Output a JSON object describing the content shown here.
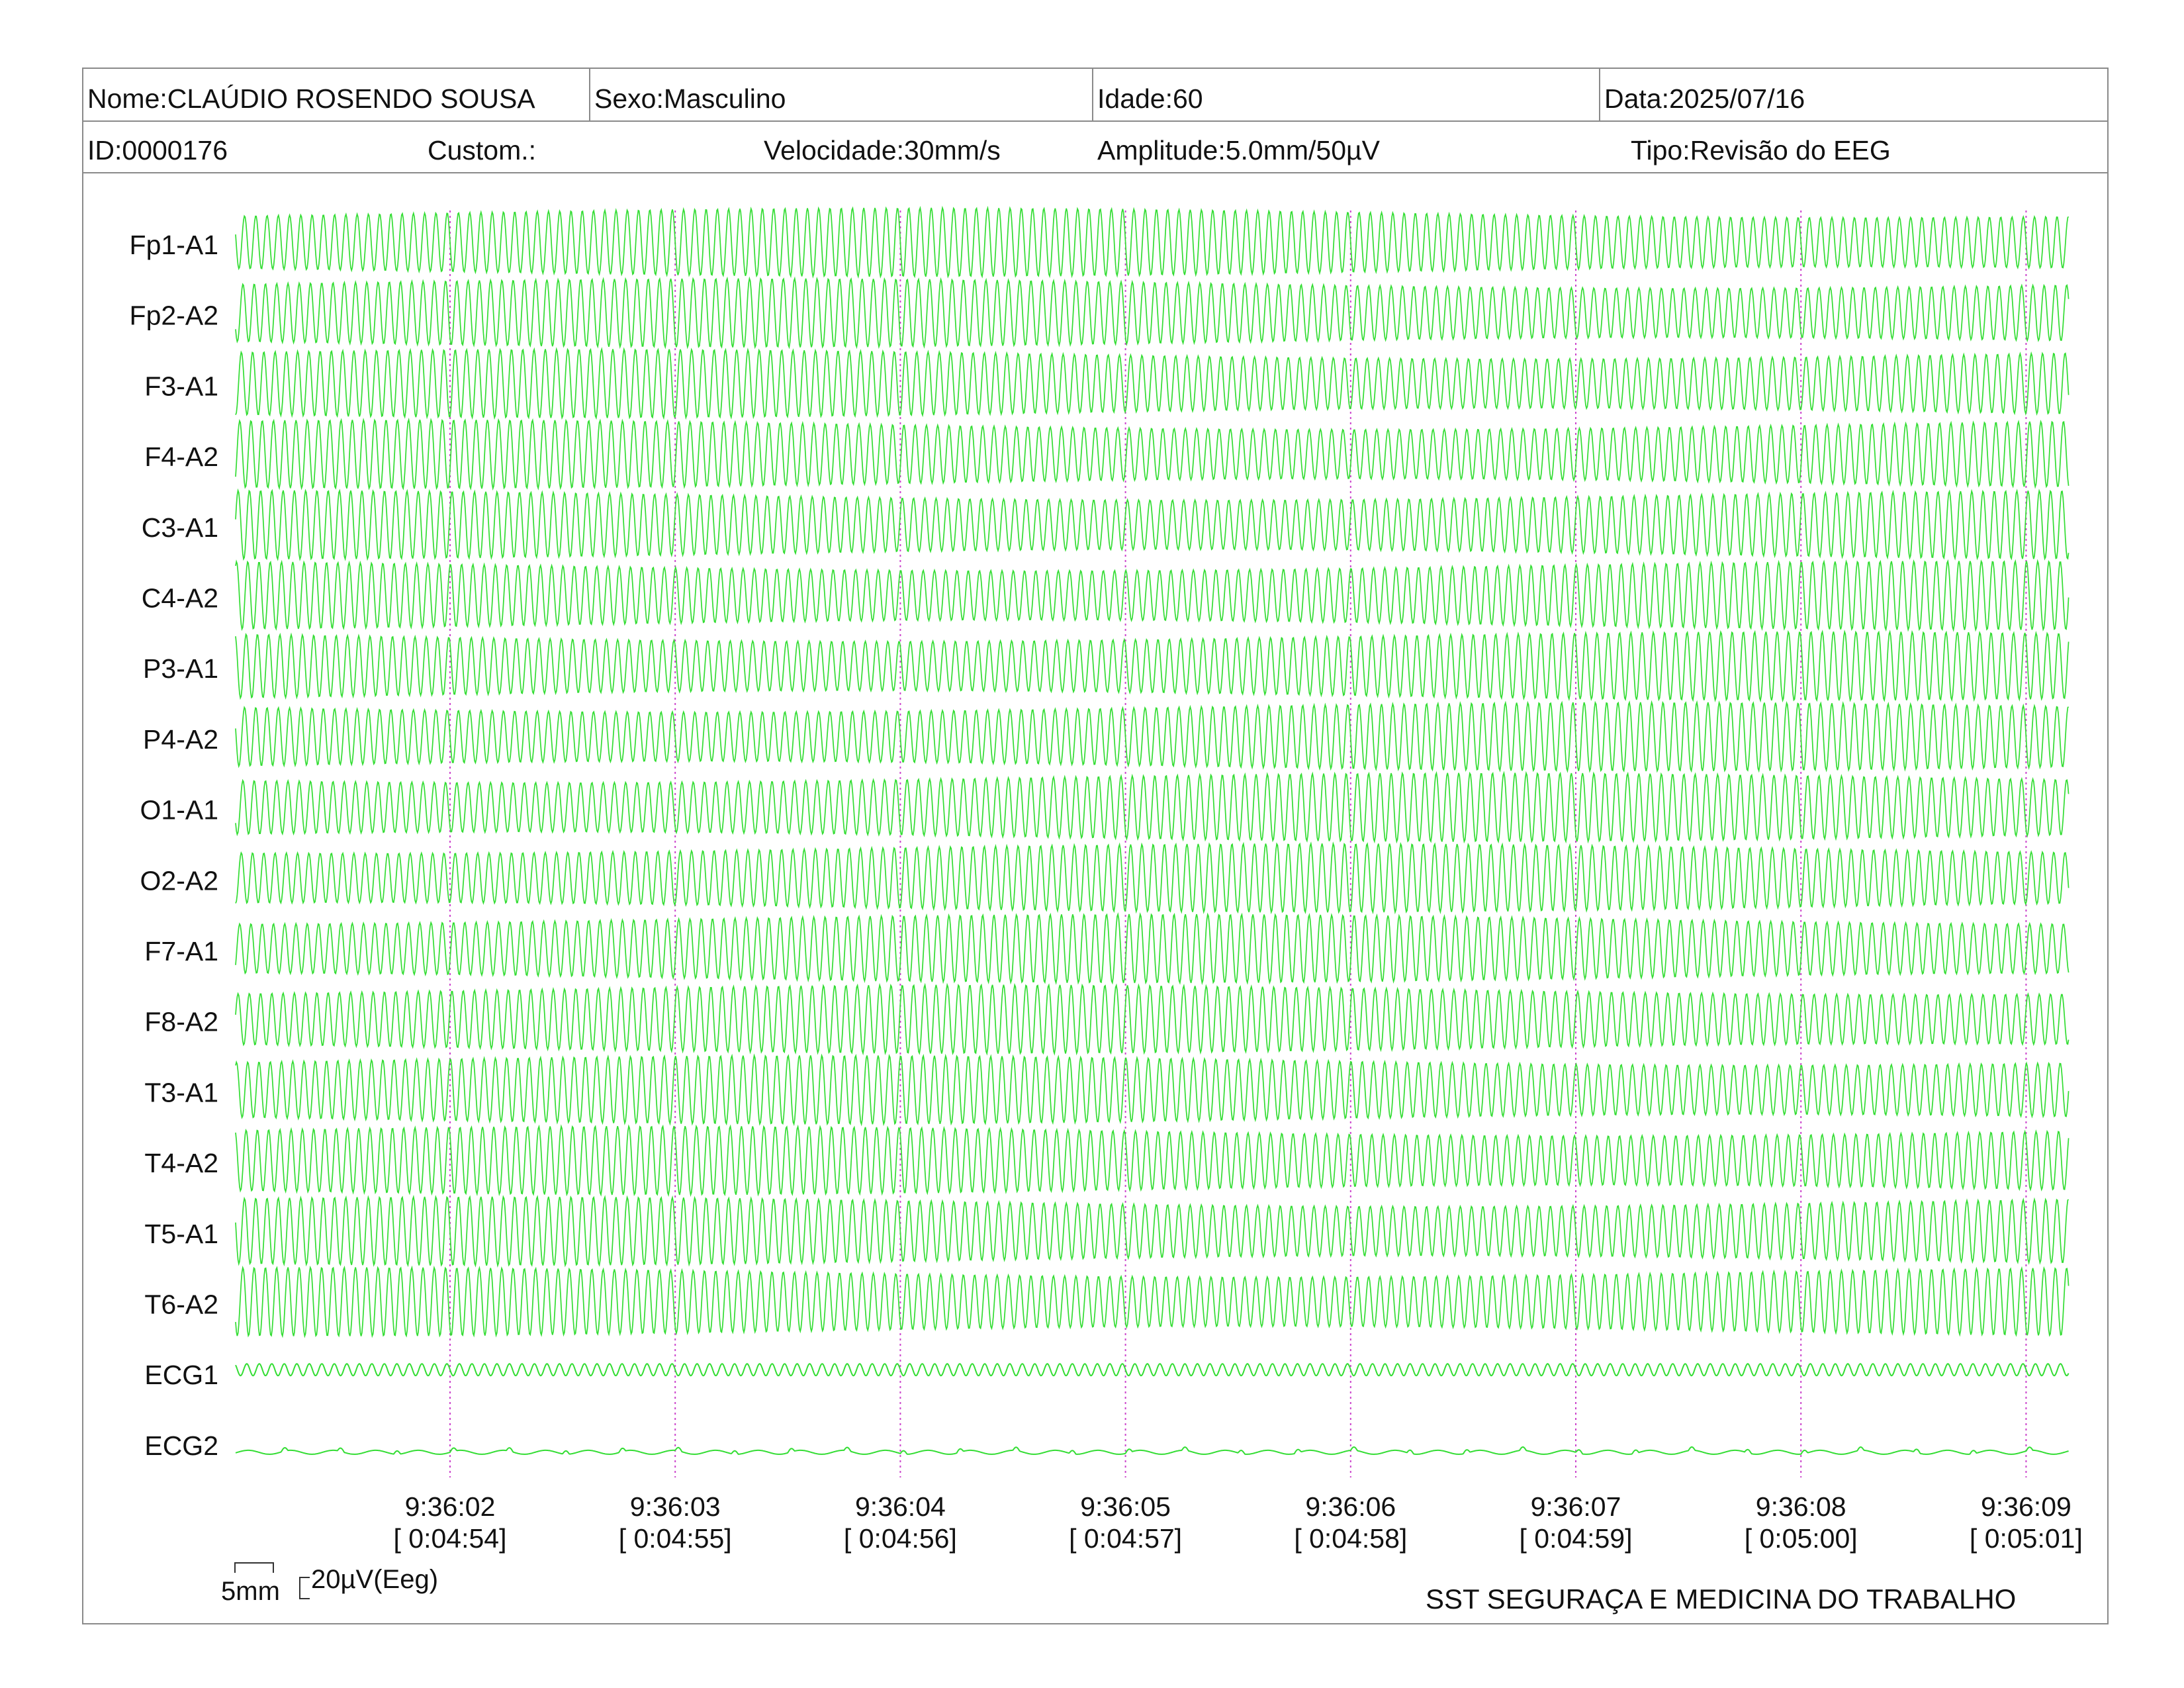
{
  "header": {
    "nome": "Nome:CLAÚDIO ROSENDO SOUSA",
    "sexo": "Sexo:Masculino",
    "idade": "Idade:60",
    "data": "Data:2025/07/16",
    "id": "ID:0000176",
    "custom": "Custom.:",
    "velocidade": "Velocidade:30mm/s",
    "amplitude": "Amplitude:5.0mm/50µV",
    "tipo": "Tipo:Revisão do EEG"
  },
  "scale": {
    "time_label": "5mm",
    "amp_label": "20µV(Eeg)"
  },
  "footer": {
    "institution": "SST SEGURAÇA E MEDICINA DO TRABALHO"
  },
  "colors": {
    "trace": "#33dd33",
    "marker": "#cc44cc",
    "border": "#8a8a8a"
  },
  "chart_data": {
    "type": "line",
    "title": "",
    "channels": [
      "Fp1-A1",
      "Fp2-A2",
      "F3-A1",
      "F4-A2",
      "C3-A1",
      "C4-A2",
      "P3-A1",
      "P4-A2",
      "O1-A1",
      "O2-A2",
      "F7-A1",
      "F8-A2",
      "T3-A1",
      "T4-A2",
      "T5-A1",
      "T6-A2",
      "ECG1",
      "ECG2"
    ],
    "time_ticks": [
      {
        "clock": "9:36:02",
        "elapsed": "[ 0:04:54]"
      },
      {
        "clock": "9:36:03",
        "elapsed": "[ 0:04:55]"
      },
      {
        "clock": "9:36:04",
        "elapsed": "[ 0:04:56]"
      },
      {
        "clock": "9:36:05",
        "elapsed": "[ 0:04:57]"
      },
      {
        "clock": "9:36:06",
        "elapsed": "[ 0:04:58]"
      },
      {
        "clock": "9:36:07",
        "elapsed": "[ 0:04:59]"
      },
      {
        "clock": "9:36:08",
        "elapsed": "[ 0:05:00]"
      },
      {
        "clock": "9:36:09",
        "elapsed": "[ 0:05:01]"
      }
    ],
    "duration_s": 8.1,
    "eeg_frequency_hz": 20,
    "ecg1_frequency_hz": 18,
    "grid": false,
    "legend": "none"
  }
}
